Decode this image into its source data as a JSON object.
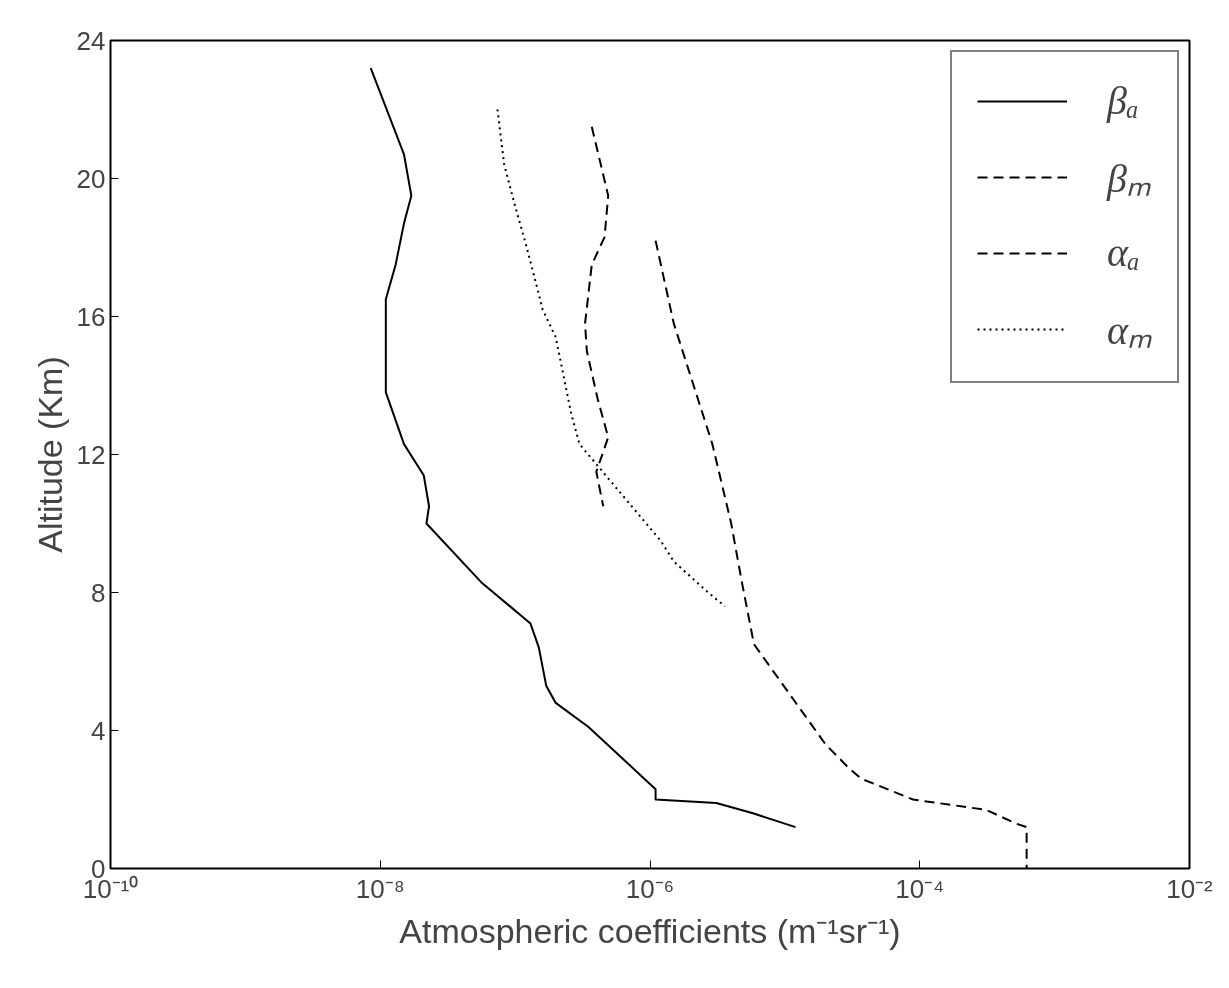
{
  "chart_data": {
    "type": "line",
    "xlabel": "Atmospheric coefficients (m⁻¹sr⁻¹)",
    "ylabel": "Altitude (Km)",
    "log": "x",
    "xlim": [
      1e-10,
      0.01
    ],
    "xticks": [
      {
        "value": 1e-10,
        "label": "10⁻¹⁰"
      },
      {
        "value": 1e-08,
        "label": "10⁻⁸"
      },
      {
        "value": 1e-06,
        "label": "10⁻⁶"
      },
      {
        "value": 0.0001,
        "label": "10⁻⁴"
      },
      {
        "value": 0.01,
        "label": "10⁻²"
      }
    ],
    "ylim": [
      0,
      24
    ],
    "yticks": [
      0,
      4,
      8,
      12,
      16,
      20,
      24
    ],
    "grid": false,
    "legend": "top right",
    "series": [
      {
        "name": "βₐ",
        "color": "#000000",
        "line_style": "solid",
        "x": [
          8.5e-09,
          1.5e-08,
          1.7e-08,
          1.5e-08,
          1.3e-08,
          1.1e-08,
          1.1e-08,
          1.1e-08,
          1.5e-08,
          2.1e-08,
          2.3e-08,
          2.2e-08,
          5.6e-08,
          1.3e-07,
          1.5e-07,
          1.7e-07,
          2e-07,
          3.5e-07,
          1.1e-06,
          1.1e-06,
          3.1e-06,
          5.8e-06,
          1.2e-05
        ],
        "values": [
          23.2,
          20.7,
          19.5,
          18.7,
          17.5,
          16.5,
          15.3,
          13.8,
          12.3,
          11.4,
          10.5,
          10,
          8.3,
          7.1,
          6.4,
          5.3,
          4.8,
          4.1,
          2.3,
          2.0,
          1.9,
          1.6,
          1.2
        ]
      },
      {
        "name": "βₘ",
        "color": "#000000",
        "line_style": "dashed",
        "x": [
          3.7e-07,
          4.9e-07,
          4.6e-07,
          3.7e-07,
          3.3e-07,
          3.4e-07,
          4.1e-07,
          4.9e-07,
          4e-07,
          4.5e-07
        ],
        "values": [
          21.5,
          19.5,
          18.3,
          17.5,
          15.8,
          15,
          13.6,
          12.5,
          11.5,
          10.5
        ]
      },
      {
        "name": "αₐ",
        "color": "#000000",
        "line_style": "dashed",
        "x": [
          1.1e-06,
          1.5e-06,
          2.9e-06,
          4e-06,
          4.8e-06,
          5.9e-06,
          2e-05,
          3e-05,
          3.7e-05,
          8.9e-05,
          0.00031,
          0.00052,
          0.00062,
          0.00062
        ],
        "values": [
          18.2,
          15.8,
          12.3,
          10,
          8.3,
          6.5,
          3.6,
          2.9,
          2.6,
          2.0,
          1.7,
          1.3,
          1.2,
          0
        ]
      },
      {
        "name": "αₘ",
        "color": "#000000",
        "line_style": "dotted",
        "x": [
          7.4e-08,
          8.3e-08,
          1e-07,
          1.2e-07,
          1.4e-07,
          1.6e-07,
          2e-07,
          2.6e-07,
          3e-07,
          1.2e-06,
          1.5e-06,
          2.7e-06,
          3.6e-06
        ],
        "values": [
          22,
          20.4,
          19.2,
          18.1,
          17.1,
          16.2,
          15.4,
          13.2,
          12.3,
          9.5,
          8.9,
          8.0,
          7.6
        ]
      }
    ]
  }
}
